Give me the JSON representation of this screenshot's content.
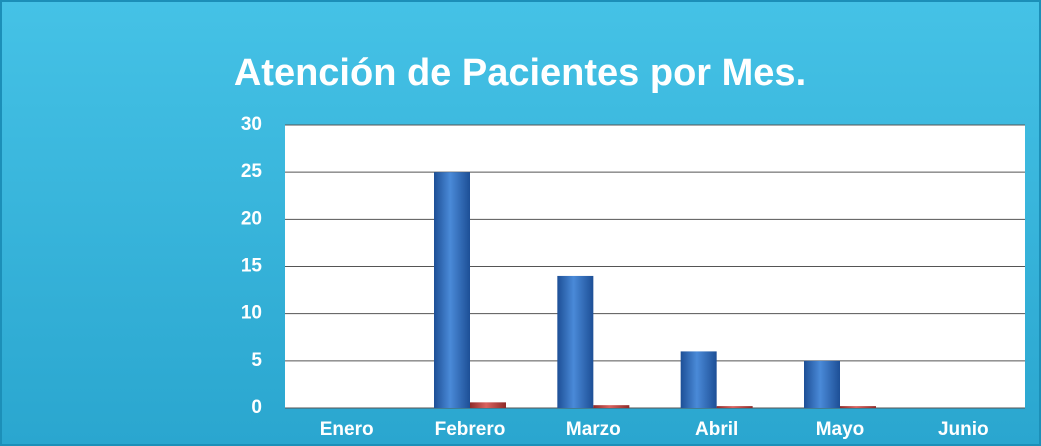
{
  "chart_data": {
    "type": "bar",
    "title": "Atención de Pacientes por Mes.",
    "categories": [
      "Enero",
      "Febrero",
      "Marzo",
      "Abril",
      "Mayo",
      "Junio"
    ],
    "series": [
      {
        "color": "#2f6fc4",
        "values": [
          0,
          25,
          14,
          6,
          5,
          0
        ]
      },
      {
        "color": "#c0504d",
        "values": [
          0,
          0.6,
          0.3,
          0.2,
          0.2,
          0
        ]
      }
    ],
    "ylim": [
      0,
      30
    ],
    "yticks": [
      0,
      5,
      10,
      15,
      20,
      25,
      30
    ],
    "grid": true
  }
}
